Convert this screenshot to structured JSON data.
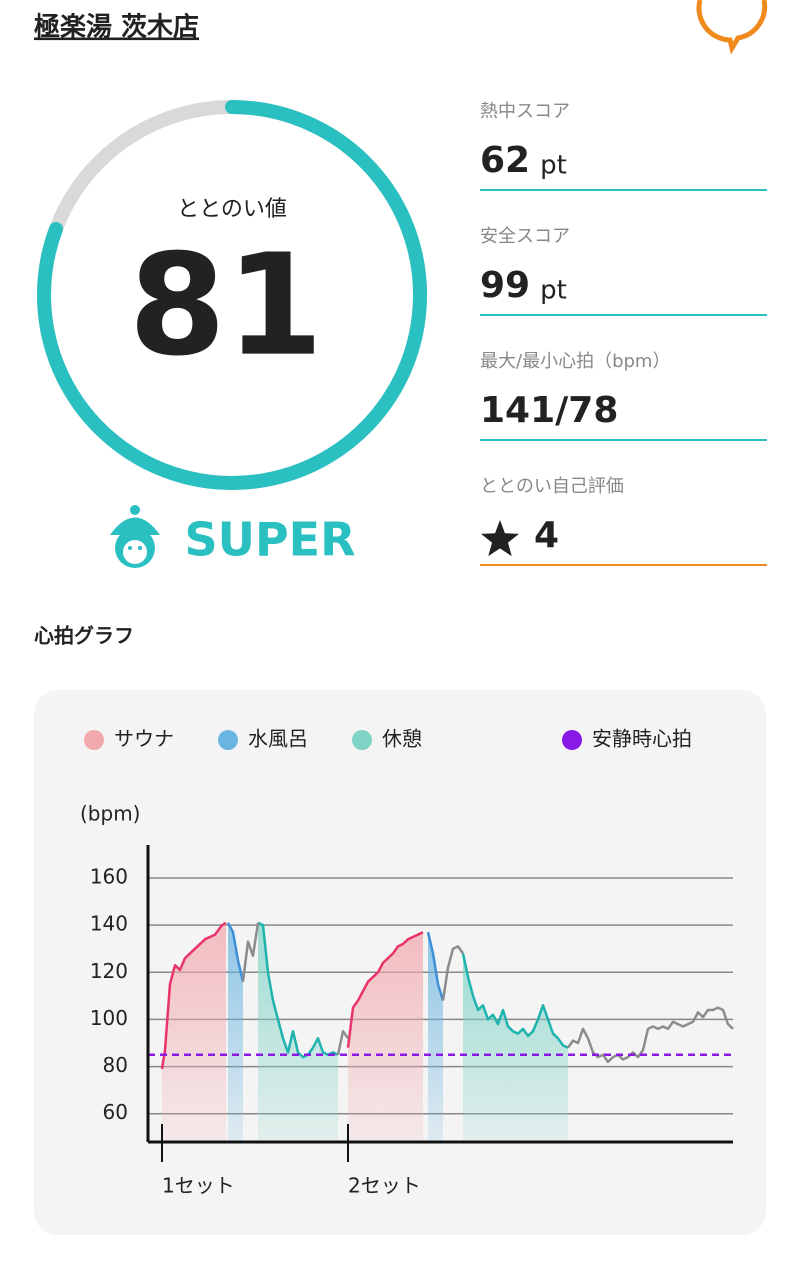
{
  "header": {
    "title": "極楽湯 茨木店"
  },
  "score": {
    "label": "ととのい値",
    "value": "81",
    "rank": "SUPER"
  },
  "stats": [
    {
      "label": "熱中スコア",
      "value": "62",
      "unit": "pt"
    },
    {
      "label": "安全スコア",
      "value": "99",
      "unit": "pt"
    },
    {
      "label": "最大/最小心拍（bpm）",
      "value": "141/78"
    },
    {
      "label": "ととのい自己評価",
      "value": "4"
    }
  ],
  "section_title": "心拍グラフ",
  "chart_data": {
    "type": "line",
    "y_label": "(bpm)",
    "xlim": [
      0,
      117
    ],
    "ylim": [
      48,
      174
    ],
    "yticks": [
      60,
      80,
      100,
      120,
      140,
      160
    ],
    "xticks": [
      {
        "value": 2.8,
        "label": "1セット"
      },
      {
        "value": 40,
        "label": "2セット"
      }
    ],
    "grid": true,
    "series": [
      {
        "name": "サウナ",
        "color": "#e8336b",
        "fill": "#f2a9ae",
        "x": [
          2.8,
          3.4,
          4.4,
          5.4,
          6.4,
          7.4,
          9.4,
          11.4,
          13.4,
          14.8,
          15.6,
          null,
          40,
          41,
          42,
          43,
          44,
          45,
          46,
          47,
          48,
          49,
          50,
          51,
          52,
          53,
          54,
          55
        ],
        "values": [
          79,
          87,
          115,
          123,
          121,
          126,
          130,
          134,
          136,
          140,
          141,
          null,
          88,
          105,
          108,
          112,
          116,
          118,
          120,
          124,
          126,
          128,
          131,
          132,
          134,
          135,
          136,
          137
        ]
      },
      {
        "name": "水風呂",
        "color": "#3d8fd8",
        "fill": "#6ab4e0",
        "x": [
          16,
          17,
          18,
          19,
          null,
          56,
          57,
          58,
          59
        ],
        "values": [
          141,
          137,
          125,
          116,
          null,
          137,
          128,
          115,
          108
        ]
      },
      {
        "name": "休憩",
        "color": "#1fb3ae",
        "fill": "#7fd3c6",
        "x": [
          22,
          23,
          24,
          25,
          26,
          27,
          28,
          29,
          30,
          31,
          32,
          33,
          34,
          35,
          36,
          37,
          38,
          null,
          63,
          64,
          65,
          66,
          67,
          68,
          69,
          70,
          71,
          72,
          73,
          74,
          75,
          76,
          77,
          78,
          79,
          80,
          81,
          82,
          83,
          84
        ],
        "values": [
          141,
          140,
          120,
          108,
          100,
          92,
          86,
          95,
          86,
          84,
          85,
          88,
          92,
          86,
          85,
          86,
          85,
          null,
          128,
          118,
          110,
          104,
          106,
          100,
          102,
          98,
          104,
          97,
          95,
          94,
          96,
          93,
          95,
          100,
          106,
          100,
          94,
          92,
          89,
          88
        ]
      },
      {
        "color": "#8c8c8c",
        "x": [
          19,
          20,
          21,
          22,
          null,
          38,
          39,
          40,
          null,
          59,
          60,
          61,
          62,
          63,
          null,
          84,
          85,
          86,
          87,
          88,
          89,
          90,
          91,
          92,
          93,
          94,
          95,
          96,
          97,
          98,
          99,
          100,
          101,
          102,
          103,
          104,
          105,
          106,
          107,
          108,
          109,
          110,
          111,
          112,
          113,
          114,
          115,
          116,
          117
        ],
        "values": [
          116,
          133,
          127,
          141,
          null,
          85,
          95,
          92,
          null,
          108,
          122,
          130,
          131,
          128,
          null,
          88,
          91,
          90,
          96,
          92,
          86,
          84,
          85,
          82,
          84,
          85,
          83,
          84,
          86,
          84,
          87,
          96,
          97,
          96,
          97,
          96,
          99,
          98,
          97,
          98,
          99,
          103,
          101,
          104,
          104,
          105,
          104,
          98,
          96
        ]
      },
      {
        "name": "安静時心拍",
        "color": "#8a19e6",
        "value": 85
      }
    ]
  }
}
